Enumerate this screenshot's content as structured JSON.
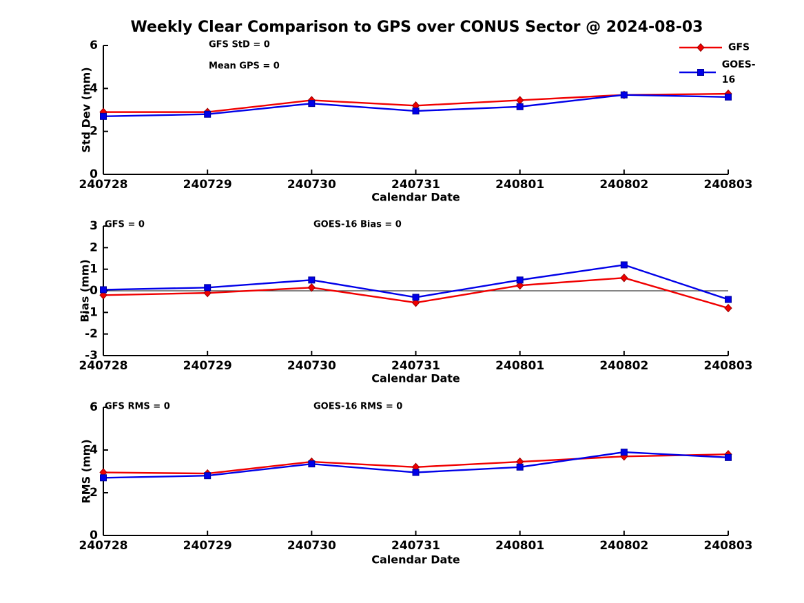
{
  "page": {
    "title": "Weekly Clear Comparison to GPS over CONUS Sector @ 2024-08-03",
    "background": "#ffffff"
  },
  "legend": [
    {
      "label": "GFS",
      "color": "#f00000",
      "edge": "#990000",
      "marker": "diamond"
    },
    {
      "label": "GOES-16",
      "color": "#0000e8",
      "edge": "#000099",
      "marker": "square"
    }
  ],
  "chart_data": [
    {
      "type": "line",
      "ylabel": "Std Dev (mm)",
      "xlabel": "Calendar Date",
      "categories": [
        "240728",
        "240729",
        "240730",
        "240731",
        "240801",
        "240802",
        "240803"
      ],
      "ylim": [
        0,
        6
      ],
      "yticks": [
        0,
        2,
        4,
        6
      ],
      "grid": false,
      "legend_position": "top-right",
      "annotations": [
        {
          "text": "GFS StD = 0"
        },
        {
          "text": "Mean GPS = 0"
        }
      ],
      "ref_line": null,
      "series": [
        {
          "name": "GFS",
          "color": "#f00000",
          "edge": "#990000",
          "marker": "diamond",
          "values": [
            2.9,
            2.9,
            3.45,
            3.2,
            3.45,
            3.7,
            3.75
          ]
        },
        {
          "name": "GOES-16",
          "color": "#0000e8",
          "edge": "#000099",
          "marker": "square",
          "values": [
            2.7,
            2.8,
            3.3,
            2.95,
            3.15,
            3.7,
            3.6
          ]
        }
      ]
    },
    {
      "type": "line",
      "ylabel": "Bias (mm)",
      "xlabel": "Calendar Date",
      "categories": [
        "240728",
        "240729",
        "240730",
        "240731",
        "240801",
        "240802",
        "240803"
      ],
      "ylim": [
        -3,
        3
      ],
      "yticks": [
        -3,
        -2,
        -1,
        0,
        1,
        2,
        3
      ],
      "grid": false,
      "annotations": [
        {
          "text": "GFS = 0"
        },
        {
          "text": "GOES-16 Bias  = 0"
        }
      ],
      "ref_line": 0,
      "series": [
        {
          "name": "GFS",
          "color": "#f00000",
          "edge": "#990000",
          "marker": "diamond",
          "values": [
            -0.2,
            -0.1,
            0.15,
            -0.55,
            0.25,
            0.6,
            -0.8
          ]
        },
        {
          "name": "GOES-16",
          "color": "#0000e8",
          "edge": "#000099",
          "marker": "square",
          "values": [
            0.05,
            0.15,
            0.5,
            -0.3,
            0.5,
            1.2,
            -0.4
          ]
        }
      ]
    },
    {
      "type": "line",
      "ylabel": "RMS (mm)",
      "xlabel": "Calendar Date",
      "categories": [
        "240728",
        "240729",
        "240730",
        "240731",
        "240801",
        "240802",
        "240803"
      ],
      "ylim": [
        0,
        6
      ],
      "yticks": [
        0,
        2,
        4,
        6
      ],
      "grid": false,
      "annotations": [
        {
          "text": "GFS RMS = 0"
        },
        {
          "text": "GOES-16 RMS = 0"
        }
      ],
      "ref_line": null,
      "series": [
        {
          "name": "GFS",
          "color": "#f00000",
          "edge": "#990000",
          "marker": "diamond",
          "values": [
            2.95,
            2.9,
            3.45,
            3.2,
            3.45,
            3.7,
            3.8
          ]
        },
        {
          "name": "GOES-16",
          "color": "#0000e8",
          "edge": "#000099",
          "marker": "square",
          "values": [
            2.7,
            2.8,
            3.35,
            2.95,
            3.2,
            3.9,
            3.65
          ]
        }
      ]
    }
  ]
}
